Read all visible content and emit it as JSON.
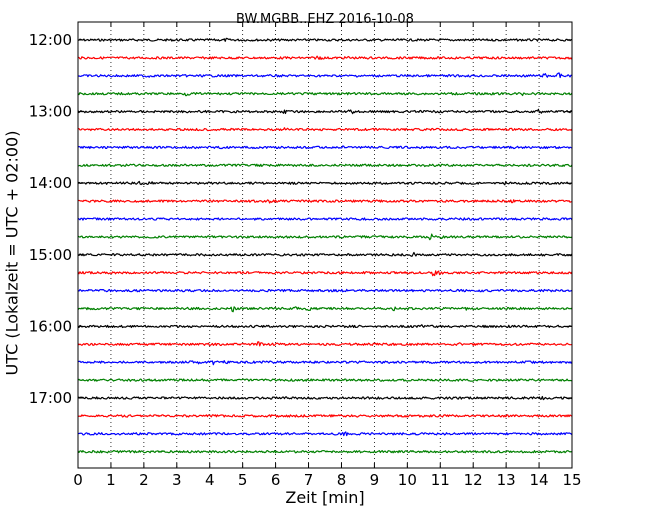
{
  "chart_data": {
    "type": "line",
    "title": "BW.MGBB..EHZ 2016-10-08",
    "xlabel": "Zeit  [min]",
    "ylabel": "UTC (Lokalzeit = UTC + 02:00)",
    "xlim": [
      0,
      15
    ],
    "x_ticks": [
      "0",
      "1",
      "2",
      "3",
      "4",
      "5",
      "6",
      "7",
      "8",
      "9",
      "10",
      "11",
      "12",
      "13",
      "14",
      "15"
    ],
    "y_ticks": [
      "12:00",
      "13:00",
      "14:00",
      "15:00",
      "16:00",
      "17:00"
    ],
    "row_interval_minutes": 15,
    "grid": "vertical dotted",
    "colors": [
      "#000000",
      "#ff0000",
      "#0000ff",
      "#008000"
    ],
    "traces": [
      {
        "start": "12:00",
        "color": "#000000",
        "events": [
          [
            4.5,
            0.5
          ],
          [
            9.6,
            0.5
          ]
        ]
      },
      {
        "start": "12:15",
        "color": "#ff0000",
        "events": [
          [
            7.3,
            1.5
          ],
          [
            8.2,
            0.6
          ]
        ]
      },
      {
        "start": "12:30",
        "color": "#0000ff",
        "events": [
          [
            2.1,
            1.0
          ],
          [
            14.2,
            1.6
          ],
          [
            14.6,
            1.4
          ]
        ]
      },
      {
        "start": "12:45",
        "color": "#008000",
        "events": [
          [
            3.3,
            0.8
          ],
          [
            13.5,
            0.5
          ]
        ]
      },
      {
        "start": "13:00",
        "color": "#000000",
        "events": [
          [
            6.3,
            1.0
          ],
          [
            8.3,
            1.3
          ],
          [
            14.0,
            1.0
          ]
        ]
      },
      {
        "start": "13:15",
        "color": "#ff0000",
        "events": [
          [
            3.0,
            0.6
          ],
          [
            6.3,
            0.6
          ]
        ]
      },
      {
        "start": "13:30",
        "color": "#0000ff",
        "events": [
          [
            8.0,
            1.3
          ]
        ]
      },
      {
        "start": "13:45",
        "color": "#008000",
        "events": [
          [
            10.5,
            0.5
          ]
        ]
      },
      {
        "start": "14:00",
        "color": "#000000",
        "events": [
          [
            1.9,
            1.0
          ],
          [
            2.2,
            0.8
          ],
          [
            13.0,
            0.6
          ]
        ]
      },
      {
        "start": "14:15",
        "color": "#ff0000",
        "events": [
          [
            5.8,
            0.6
          ],
          [
            13.2,
            0.6
          ],
          [
            14.9,
            1.0
          ]
        ]
      },
      {
        "start": "14:30",
        "color": "#0000ff",
        "events": [
          [
            1.6,
            1.0
          ]
        ]
      },
      {
        "start": "14:45",
        "color": "#008000",
        "events": [
          [
            10.7,
            1.6
          ],
          [
            11.0,
            0.8
          ]
        ]
      },
      {
        "start": "15:00",
        "color": "#000000",
        "events": [
          [
            10.2,
            0.8
          ]
        ]
      },
      {
        "start": "15:15",
        "color": "#ff0000",
        "events": [
          [
            10.8,
            1.6
          ],
          [
            11.0,
            0.8
          ]
        ]
      },
      {
        "start": "15:30",
        "color": "#0000ff",
        "events": [
          [
            8.1,
            0.5
          ]
        ]
      },
      {
        "start": "15:45",
        "color": "#008000",
        "events": [
          [
            4.7,
            1.6
          ],
          [
            6.6,
            1.0
          ],
          [
            7.0,
            1.0
          ],
          [
            9.6,
            1.0
          ],
          [
            11.8,
            0.8
          ]
        ]
      },
      {
        "start": "16:00",
        "color": "#000000",
        "events": [
          [
            10.4,
            0.6
          ]
        ]
      },
      {
        "start": "16:15",
        "color": "#ff0000",
        "events": [
          [
            5.5,
            2.0
          ],
          [
            11.6,
            0.6
          ]
        ]
      },
      {
        "start": "16:30",
        "color": "#0000ff",
        "events": [
          [
            3.4,
            0.8
          ],
          [
            3.7,
            1.0
          ],
          [
            4.1,
            1.0
          ],
          [
            4.5,
            0.8
          ]
        ]
      },
      {
        "start": "16:45",
        "color": "#008000",
        "events": []
      },
      {
        "start": "17:00",
        "color": "#000000",
        "events": [
          [
            14.1,
            1.2
          ]
        ]
      },
      {
        "start": "17:15",
        "color": "#ff0000",
        "events": []
      },
      {
        "start": "17:30",
        "color": "#0000ff",
        "events": [
          [
            8.1,
            1.0
          ]
        ]
      },
      {
        "start": "17:45",
        "color": "#008000",
        "events": []
      }
    ]
  }
}
